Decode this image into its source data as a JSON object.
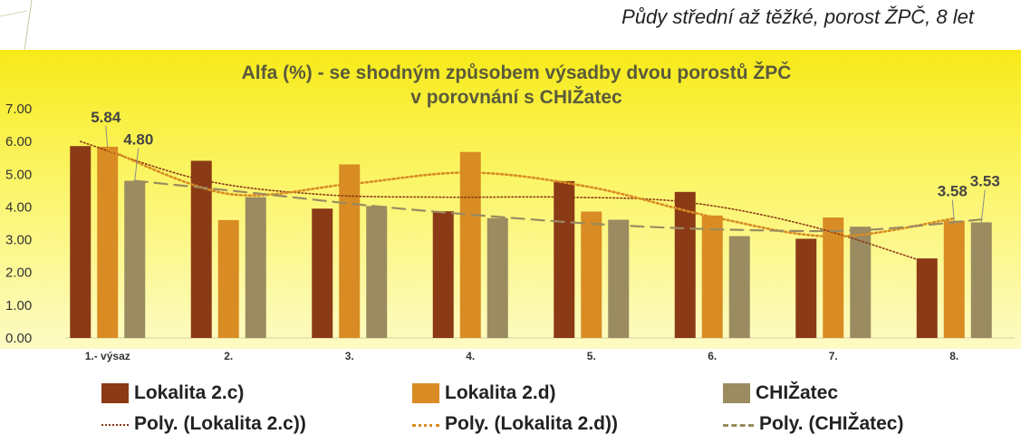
{
  "slide": {
    "title": "Půdy střední až těžké, porost ŽPČ, 8 let"
  },
  "colors": {
    "lok2c": "#8b3a16",
    "lok2d": "#d98c23",
    "chizatec": "#9a8b60"
  },
  "chart_data": {
    "type": "bar",
    "title": "Alfa (%) - se shodným způsobem výsadby dvou porostů ŽPČ v porovnání s CHIŽatec",
    "xlabel": "",
    "ylabel": "",
    "ylim": [
      0,
      7
    ],
    "yticks": [
      "0.00",
      "1.00",
      "2.00",
      "3.00",
      "4.00",
      "5.00",
      "6.00",
      "7.00"
    ],
    "categories": [
      "1.- výsaz",
      "2.",
      "3.",
      "4.",
      "5.",
      "6.",
      "7.",
      "8."
    ],
    "series": [
      {
        "name": "Lokalita 2.c)",
        "values": [
          5.86,
          5.41,
          3.95,
          3.87,
          4.79,
          4.46,
          3.03,
          2.43
        ]
      },
      {
        "name": "Lokalita 2.d)",
        "values": [
          5.84,
          3.6,
          5.3,
          5.68,
          3.86,
          3.74,
          3.68,
          3.58
        ]
      },
      {
        "name": "CHIŽatec",
        "values": [
          4.8,
          4.3,
          4.03,
          3.66,
          3.61,
          3.11,
          3.4,
          3.53
        ]
      }
    ],
    "trendlines": [
      {
        "name": "Poly. (Lokalita 2.c))",
        "of": "Lokalita 2.c)",
        "style": "dotted",
        "values": [
          6.0,
          4.83,
          4.38,
          4.3,
          4.3,
          4.15,
          3.45,
          2.3
        ]
      },
      {
        "name": "Poly. (Lokalita 2.d))",
        "of": "Lokalita 2.d)",
        "style": "dotted",
        "values": [
          5.75,
          4.4,
          4.7,
          5.05,
          4.6,
          3.7,
          3.1,
          3.65
        ]
      },
      {
        "name": "Poly. (CHIŽatec)",
        "of": "CHIŽatec",
        "style": "dashed",
        "values": [
          4.8,
          4.42,
          4.02,
          3.7,
          3.44,
          3.3,
          3.29,
          3.62
        ]
      }
    ],
    "data_labels": [
      {
        "series": 1,
        "index": 0,
        "text": "5.84"
      },
      {
        "series": 2,
        "index": 0,
        "text": "4.80"
      },
      {
        "series": 1,
        "index": 7,
        "text": "3.58"
      },
      {
        "series": 2,
        "index": 7,
        "text": "3.53"
      }
    ],
    "grid": false,
    "legend_position": "bottom"
  }
}
